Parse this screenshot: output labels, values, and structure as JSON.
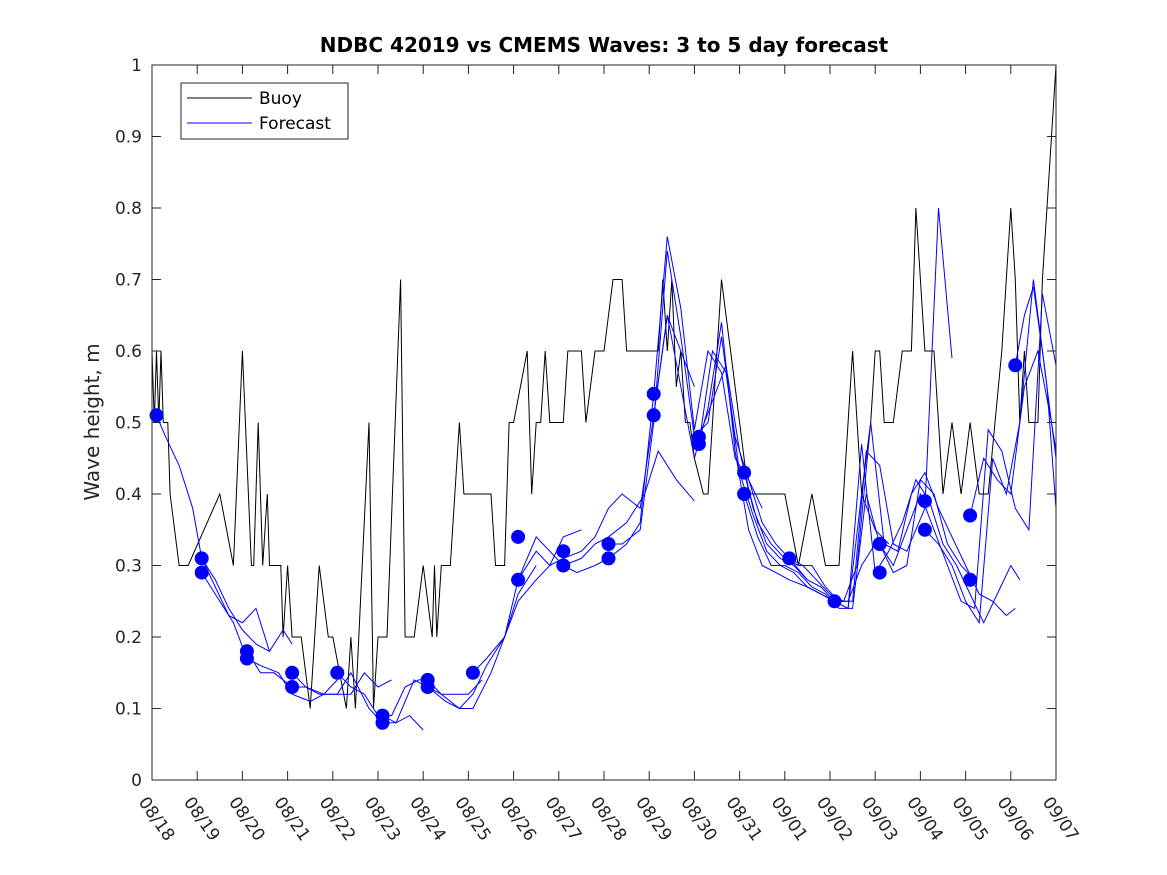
{
  "chart_data": {
    "type": "line",
    "title": "NDBC 42019 vs CMEMS Waves: 3 to 5 day forecast",
    "xlabel": "",
    "ylabel": "Wave height, m",
    "xlim": [
      0,
      20
    ],
    "ylim": [
      0,
      1
    ],
    "yticks": [
      0,
      0.1,
      0.2,
      0.3,
      0.4,
      0.5,
      0.6,
      0.7,
      0.8,
      0.9,
      1
    ],
    "ytick_labels": [
      "0",
      "0.1",
      "0.2",
      "0.3",
      "0.4",
      "0.5",
      "0.6",
      "0.7",
      "0.8",
      "0.9",
      "1"
    ],
    "xtick_labels": [
      "08/18",
      "08/19",
      "08/20",
      "08/21",
      "08/22",
      "08/23",
      "08/24",
      "08/25",
      "08/26",
      "08/27",
      "08/28",
      "08/29",
      "08/30",
      "08/31",
      "09/01",
      "09/02",
      "09/03",
      "09/04",
      "09/05",
      "09/06",
      "09/07"
    ],
    "legend": {
      "position": "top-left",
      "entries": [
        "Buoy",
        "Forecast"
      ]
    },
    "colors": {
      "buoy": "#000000",
      "forecast": "#0000ff"
    },
    "buoy": {
      "name": "Buoy",
      "x": [
        0,
        0.05,
        0.1,
        0.15,
        0.2,
        0.25,
        0.3,
        0.35,
        0.4,
        0.6,
        0.7,
        0.8,
        1.5,
        1.8,
        2.0,
        2.2,
        2.25,
        2.35,
        2.45,
        2.55,
        2.6,
        2.7,
        2.75,
        2.85,
        2.9,
        3.0,
        3.1,
        3.3,
        3.5,
        3.7,
        3.9,
        4.0,
        4.3,
        4.4,
        4.5,
        4.8,
        4.9,
        5.0,
        5.1,
        5.2,
        5.5,
        5.6,
        5.8,
        6.0,
        6.2,
        6.25,
        6.3,
        6.4,
        6.5,
        6.6,
        6.8,
        6.9,
        7.0,
        7.5,
        7.6,
        7.8,
        7.9,
        8.0,
        8.3,
        8.4,
        8.5,
        8.6,
        8.7,
        8.8,
        9.0,
        9.1,
        9.2,
        9.5,
        9.6,
        9.8,
        10.0,
        10.2,
        10.4,
        10.5,
        10.8,
        11.0,
        11.2,
        11.3,
        11.4,
        11.5,
        11.6,
        11.7,
        11.8,
        11.9,
        12.0,
        12.2,
        12.3,
        12.4,
        12.5,
        12.6,
        12.7,
        12.8,
        13.0,
        13.2,
        13.4,
        13.6,
        14.0,
        14.3,
        14.6,
        14.9,
        15.0,
        15.2,
        15.5,
        15.7,
        15.9,
        16.0,
        16.1,
        16.2,
        16.4,
        16.6,
        16.8,
        16.9,
        17.1,
        17.3,
        17.5,
        17.7,
        17.9,
        18.1,
        18.3,
        18.5,
        18.8,
        19.0,
        19.1,
        19.2,
        19.3,
        19.4,
        19.6,
        19.7,
        19.9,
        20.0
      ],
      "y": [
        0.6,
        0.5,
        0.6,
        0.5,
        0.6,
        0.5,
        0.5,
        0.5,
        0.4,
        0.3,
        0.3,
        0.3,
        0.4,
        0.3,
        0.6,
        0.3,
        0.3,
        0.5,
        0.3,
        0.4,
        0.3,
        0.3,
        0.3,
        0.3,
        0.2,
        0.3,
        0.2,
        0.2,
        0.1,
        0.3,
        0.2,
        0.2,
        0.1,
        0.2,
        0.1,
        0.5,
        0.1,
        0.2,
        0.2,
        0.2,
        0.7,
        0.2,
        0.2,
        0.3,
        0.2,
        0.3,
        0.2,
        0.3,
        0.3,
        0.3,
        0.5,
        0.4,
        0.4,
        0.4,
        0.3,
        0.3,
        0.5,
        0.5,
        0.6,
        0.4,
        0.5,
        0.5,
        0.6,
        0.5,
        0.5,
        0.5,
        0.6,
        0.6,
        0.5,
        0.6,
        0.6,
        0.7,
        0.7,
        0.6,
        0.6,
        0.6,
        0.6,
        0.7,
        0.6,
        0.7,
        0.55,
        0.6,
        0.5,
        0.5,
        0.45,
        0.4,
        0.4,
        0.5,
        0.6,
        0.7,
        0.65,
        0.6,
        0.5,
        0.4,
        0.4,
        0.4,
        0.4,
        0.3,
        0.4,
        0.3,
        0.3,
        0.3,
        0.6,
        0.4,
        0.5,
        0.6,
        0.6,
        0.5,
        0.5,
        0.6,
        0.6,
        0.8,
        0.6,
        0.6,
        0.4,
        0.5,
        0.4,
        0.5,
        0.4,
        0.4,
        0.6,
        0.8,
        0.7,
        0.5,
        0.6,
        0.5,
        0.5,
        0.7,
        0.9,
        1.0
      ]
    },
    "forecast_series": [
      {
        "name": "Forecast",
        "x": [
          0.1,
          0.3,
          0.6,
          0.9,
          1.1,
          1.4,
          1.7,
          2.0,
          2.3,
          2.6
        ],
        "y": [
          0.51,
          0.48,
          0.44,
          0.38,
          0.31,
          0.28,
          0.24,
          0.21,
          0.19,
          0.18
        ]
      },
      {
        "name": "Forecast",
        "x": [
          1.1,
          1.4,
          1.7,
          2.0,
          2.3,
          2.6,
          2.9,
          3.1
        ],
        "y": [
          0.31,
          0.27,
          0.23,
          0.22,
          0.24,
          0.18,
          0.21,
          0.19
        ]
      },
      {
        "name": "Forecast",
        "x": [
          1.1,
          1.4,
          1.8,
          2.1,
          2.4,
          2.8,
          3.1,
          3.5,
          3.8,
          4.1
        ],
        "y": [
          0.29,
          0.26,
          0.22,
          0.17,
          0.16,
          0.15,
          0.12,
          0.11,
          0.12,
          0.14
        ]
      },
      {
        "name": "Forecast",
        "x": [
          2.1,
          2.4,
          2.7,
          3.1,
          3.4,
          3.7,
          4.0,
          4.4,
          4.7,
          5.0,
          5.3
        ],
        "y": [
          0.18,
          0.15,
          0.15,
          0.13,
          0.13,
          0.12,
          0.12,
          0.12,
          0.15,
          0.13,
          0.14
        ]
      },
      {
        "name": "Forecast",
        "x": [
          3.1,
          3.4,
          3.8,
          4.1,
          4.4,
          4.8,
          5.1,
          5.4,
          5.7,
          6.0
        ],
        "y": [
          0.15,
          0.13,
          0.12,
          0.12,
          0.15,
          0.1,
          0.08,
          0.08,
          0.09,
          0.07
        ]
      },
      {
        "name": "Forecast",
        "x": [
          4.1,
          4.4,
          4.7,
          5.0,
          5.3,
          5.6,
          5.9,
          6.1,
          6.4,
          6.7,
          7.0,
          7.3
        ],
        "y": [
          0.15,
          0.13,
          0.12,
          0.09,
          0.09,
          0.13,
          0.14,
          0.14,
          0.12,
          0.12,
          0.12,
          0.14
        ]
      },
      {
        "name": "Forecast",
        "x": [
          5.1,
          5.4,
          5.8,
          6.1,
          6.5,
          6.8,
          7.1,
          7.4,
          7.8,
          8.1,
          8.5
        ],
        "y": [
          0.09,
          0.08,
          0.14,
          0.13,
          0.11,
          0.1,
          0.12,
          0.16,
          0.2,
          0.26,
          0.3
        ]
      },
      {
        "name": "Forecast",
        "x": [
          6.1,
          6.4,
          6.8,
          7.1,
          7.5,
          7.8,
          8.1,
          8.5,
          8.8,
          9.1,
          9.5
        ],
        "y": [
          0.13,
          0.12,
          0.1,
          0.1,
          0.15,
          0.2,
          0.25,
          0.28,
          0.3,
          0.34,
          0.35
        ]
      },
      {
        "name": "Forecast",
        "x": [
          7.1,
          7.4,
          7.8,
          8.1,
          8.5,
          8.8,
          9.1,
          9.5,
          9.8,
          10.1,
          10.5,
          10.9,
          11.2,
          11.6,
          12.0
        ],
        "y": [
          0.15,
          0.17,
          0.2,
          0.28,
          0.34,
          0.32,
          0.3,
          0.31,
          0.33,
          0.34,
          0.36,
          0.4,
          0.46,
          0.42,
          0.39
        ]
      },
      {
        "name": "Forecast",
        "x": [
          8.1,
          8.5,
          8.8,
          9.1,
          9.5,
          9.8,
          10.1,
          10.4,
          10.8,
          11.1,
          11.4,
          11.7,
          12.0
        ],
        "y": [
          0.28,
          0.32,
          0.3,
          0.31,
          0.32,
          0.34,
          0.38,
          0.4,
          0.38,
          0.51,
          0.65,
          0.6,
          0.55
        ]
      },
      {
        "name": "Forecast",
        "x": [
          9.1,
          9.4,
          9.8,
          10.1,
          10.5,
          10.8,
          11.1,
          11.4,
          11.7,
          12.0,
          12.3,
          12.6,
          12.9,
          13.2,
          13.5
        ],
        "y": [
          0.3,
          0.29,
          0.3,
          0.31,
          0.33,
          0.36,
          0.54,
          0.76,
          0.66,
          0.49,
          0.6,
          0.57,
          0.45,
          0.42,
          0.38
        ]
      },
      {
        "name": "Forecast",
        "x": [
          10.1,
          10.4,
          10.8,
          11.1,
          11.4,
          11.7,
          12.0,
          12.3,
          12.6,
          12.9,
          13.2,
          13.5,
          13.8,
          14.1,
          14.5
        ],
        "y": [
          0.33,
          0.33,
          0.35,
          0.5,
          0.74,
          0.62,
          0.48,
          0.5,
          0.62,
          0.48,
          0.42,
          0.36,
          0.33,
          0.31,
          0.28
        ]
      },
      {
        "name": "Forecast",
        "x": [
          11.1,
          11.4,
          11.7,
          12.0,
          12.3,
          12.6,
          12.9,
          13.2,
          13.5,
          13.8,
          14.1,
          14.5,
          14.8,
          15.1
        ],
        "y": [
          0.51,
          0.65,
          0.55,
          0.45,
          0.52,
          0.64,
          0.46,
          0.35,
          0.3,
          0.29,
          0.28,
          0.27,
          0.26,
          0.25
        ]
      },
      {
        "name": "Forecast",
        "x": [
          12.1,
          12.4,
          12.7,
          13.0,
          13.3,
          13.6,
          13.9,
          14.2,
          14.5,
          14.8,
          15.1,
          15.4,
          15.7,
          16.0
        ],
        "y": [
          0.48,
          0.53,
          0.58,
          0.46,
          0.38,
          0.33,
          0.31,
          0.3,
          0.28,
          0.27,
          0.25,
          0.25,
          0.3,
          0.33
        ]
      },
      {
        "name": "Forecast",
        "x": [
          12.1,
          12.4,
          12.7,
          13.0,
          13.3,
          13.6,
          13.9,
          14.2,
          14.5,
          14.8,
          15.1,
          15.4,
          15.7,
          16.0,
          16.3
        ],
        "y": [
          0.47,
          0.6,
          0.57,
          0.43,
          0.37,
          0.32,
          0.3,
          0.29,
          0.27,
          0.26,
          0.25,
          0.24,
          0.4,
          0.35,
          0.33
        ]
      },
      {
        "name": "Forecast",
        "x": [
          13.1,
          13.4,
          13.7,
          14.0,
          14.3,
          14.6,
          14.9,
          15.2,
          15.5,
          15.8,
          16.1,
          16.4,
          16.7,
          17.1,
          17.4,
          17.7
        ],
        "y": [
          0.43,
          0.36,
          0.33,
          0.31,
          0.3,
          0.3,
          0.27,
          0.25,
          0.25,
          0.46,
          0.44,
          0.33,
          0.32,
          0.38,
          0.8,
          0.59
        ]
      },
      {
        "name": "Forecast",
        "x": [
          13.1,
          13.4,
          13.7,
          14.0,
          14.3,
          14.6,
          14.9,
          15.2,
          15.5,
          15.8,
          16.1,
          16.4,
          16.7,
          17.0,
          17.3,
          17.6,
          17.9,
          18.2
        ],
        "y": [
          0.4,
          0.34,
          0.3,
          0.3,
          0.29,
          0.27,
          0.26,
          0.24,
          0.24,
          0.4,
          0.33,
          0.29,
          0.3,
          0.42,
          0.4,
          0.33,
          0.3,
          0.28
        ]
      },
      {
        "name": "Forecast",
        "x": [
          14.1,
          14.4,
          14.7,
          15.0,
          15.3,
          15.6,
          15.9,
          16.2,
          16.5,
          16.8,
          17.1,
          17.4,
          17.7,
          18.0,
          18.3,
          18.6,
          18.9,
          19.1
        ],
        "y": [
          0.31,
          0.3,
          0.28,
          0.26,
          0.25,
          0.3,
          0.5,
          0.33,
          0.32,
          0.4,
          0.43,
          0.38,
          0.34,
          0.3,
          0.26,
          0.25,
          0.23,
          0.24
        ]
      },
      {
        "name": "Forecast",
        "x": [
          15.1,
          15.4,
          15.7,
          16.0,
          16.3,
          16.6,
          16.9,
          17.2,
          17.5,
          17.8,
          18.1,
          18.4,
          18.7,
          19.0,
          19.2
        ],
        "y": [
          0.25,
          0.24,
          0.47,
          0.29,
          0.32,
          0.36,
          0.42,
          0.39,
          0.33,
          0.3,
          0.26,
          0.22,
          0.26,
          0.3,
          0.28
        ]
      },
      {
        "name": "Forecast",
        "x": [
          16.1,
          16.4,
          16.7,
          17.0,
          17.3,
          17.6,
          17.9,
          18.2,
          18.5,
          18.8,
          19.1,
          19.4,
          19.7,
          20.0
        ],
        "y": [
          0.33,
          0.3,
          0.35,
          0.4,
          0.35,
          0.3,
          0.25,
          0.24,
          0.49,
          0.46,
          0.38,
          0.35,
          0.68,
          0.58
        ]
      },
      {
        "name": "Forecast",
        "x": [
          17.1,
          17.4,
          17.7,
          18.0,
          18.3,
          18.6,
          18.9,
          19.2,
          19.5,
          19.8,
          20.0
        ],
        "y": [
          0.35,
          0.33,
          0.3,
          0.25,
          0.22,
          0.45,
          0.4,
          0.5,
          0.7,
          0.55,
          0.38
        ]
      },
      {
        "name": "Forecast",
        "x": [
          18.1,
          18.4,
          18.7,
          19.0,
          19.3,
          19.6,
          19.9,
          20.0
        ],
        "y": [
          0.37,
          0.45,
          0.42,
          0.4,
          0.55,
          0.6,
          0.5,
          0.45
        ]
      },
      {
        "name": "Forecast",
        "x": [
          19.1,
          19.3,
          19.5,
          19.7,
          19.9,
          20.0
        ],
        "y": [
          0.58,
          0.65,
          0.69,
          0.6,
          0.5,
          0.46
        ]
      }
    ],
    "initial_points": {
      "x": [
        0.1,
        1.1,
        1.1,
        2.1,
        2.1,
        3.1,
        3.1,
        4.1,
        5.1,
        5.1,
        6.1,
        6.1,
        7.1,
        8.1,
        8.1,
        9.1,
        9.1,
        10.1,
        10.1,
        11.1,
        11.1,
        12.1,
        12.1,
        13.1,
        13.1,
        14.1,
        15.1,
        16.1,
        16.1,
        17.1,
        17.1,
        18.1,
        18.1,
        19.1
      ],
      "y": [
        0.51,
        0.31,
        0.29,
        0.18,
        0.17,
        0.15,
        0.13,
        0.15,
        0.09,
        0.08,
        0.14,
        0.13,
        0.15,
        0.34,
        0.28,
        0.32,
        0.3,
        0.33,
        0.31,
        0.54,
        0.51,
        0.48,
        0.47,
        0.43,
        0.4,
        0.31,
        0.25,
        0.33,
        0.29,
        0.39,
        0.35,
        0.37,
        0.28,
        0.58
      ]
    }
  }
}
